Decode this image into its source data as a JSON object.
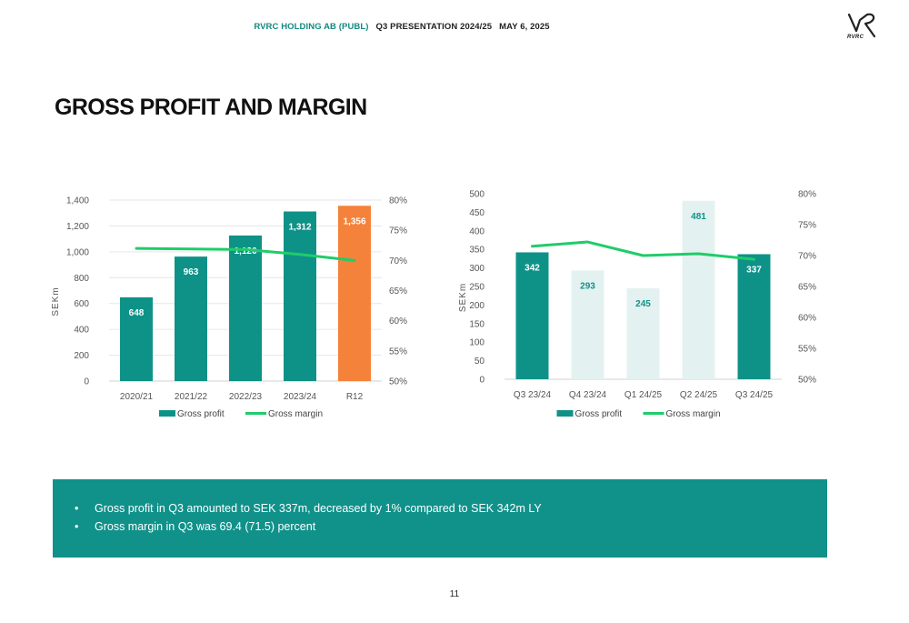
{
  "header": {
    "company": "RVRC HOLDING AB (PUBL)",
    "presentation": "Q3 PRESENTATION 2024/25",
    "date": "MAY 6, 2025"
  },
  "logo": {
    "text": "RVRC"
  },
  "title": "GROSS PROFIT AND MARGIN",
  "colors": {
    "teal": "#0e9288",
    "light_teal": "#e3f2f0",
    "orange": "#f5823a",
    "green_line": "#1fcc6a",
    "banner": "#10918a"
  },
  "chart_data": [
    {
      "type": "bar",
      "categories": [
        "2020/21",
        "2021/22",
        "2022/23",
        "2023/24",
        "R12"
      ],
      "series": [
        {
          "name": "Gross profit",
          "type": "bar",
          "axis": "left",
          "values": [
            648,
            963,
            1126,
            1312,
            1356
          ],
          "labels": [
            "648",
            "963",
            "1,126",
            "1,312",
            "1,356"
          ],
          "colors": [
            "#0e9288",
            "#0e9288",
            "#0e9288",
            "#0e9288",
            "#f5823a"
          ]
        },
        {
          "name": "Gross margin",
          "type": "line",
          "axis": "right",
          "values": [
            72.0,
            71.9,
            71.8,
            71.0,
            70.0
          ],
          "color": "#1fcc6a"
        }
      ],
      "ylabel": "SEKm",
      "ylim": [
        0,
        1400
      ],
      "yticks": [
        0,
        200,
        400,
        600,
        800,
        1000,
        1200,
        1400
      ],
      "ytick_labels": [
        "0",
        "200",
        "400",
        "600",
        "800",
        "1,000",
        "1,200",
        "1,400"
      ],
      "y2lim": [
        50,
        80
      ],
      "y2ticks": [
        50,
        55,
        60,
        65,
        70,
        75,
        80
      ],
      "y2tick_labels": [
        "50%",
        "55%",
        "60%",
        "65%",
        "70%",
        "75%",
        "80%"
      ],
      "grid": true,
      "legend_position": "bottom"
    },
    {
      "type": "bar",
      "categories": [
        "Q3 23/24",
        "Q4 23/24",
        "Q1 24/25",
        "Q2 24/25",
        "Q3 24/25"
      ],
      "series": [
        {
          "name": "Gross profit",
          "type": "bar",
          "axis": "left",
          "values": [
            342,
            293,
            245,
            481,
            337
          ],
          "labels": [
            "342",
            "293",
            "245",
            "481",
            "337"
          ],
          "colors": [
            "#0e9288",
            "#e3f2f0",
            "#e3f2f0",
            "#e3f2f0",
            "#0e9288"
          ]
        },
        {
          "name": "Gross margin",
          "type": "line",
          "axis": "right",
          "values": [
            71.5,
            72.2,
            70.0,
            70.3,
            69.4
          ],
          "color": "#1fcc6a"
        }
      ],
      "ylabel": "SEKm",
      "ylim": [
        0,
        500
      ],
      "yticks": [
        0,
        50,
        100,
        150,
        200,
        250,
        300,
        350,
        400,
        450,
        500
      ],
      "ytick_labels": [
        "0",
        "50",
        "100",
        "150",
        "200",
        "250",
        "300",
        "350",
        "400",
        "450",
        "500"
      ],
      "y2lim": [
        50,
        80
      ],
      "y2ticks": [
        50,
        55,
        60,
        65,
        70,
        75,
        80
      ],
      "y2tick_labels": [
        "50%",
        "55%",
        "60%",
        "65%",
        "70%",
        "75%",
        "80%"
      ],
      "grid": false,
      "legend_position": "bottom"
    }
  ],
  "bullets": [
    "Gross profit in Q3 amounted to SEK 337m, decreased by 1% compared to SEK 342m LY",
    "Gross margin in Q3 was 69.4 (71.5) percent"
  ],
  "page_number": "11"
}
